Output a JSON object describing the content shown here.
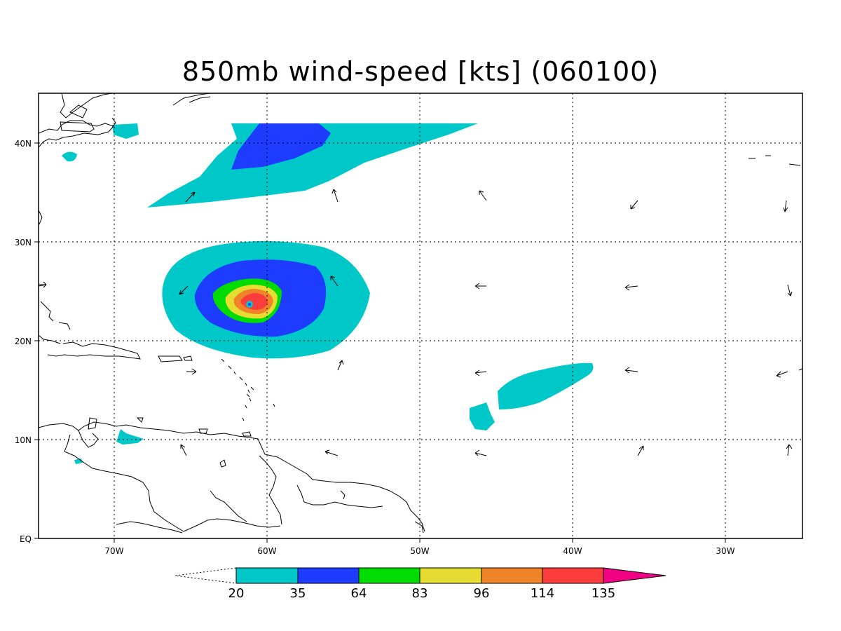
{
  "title": "850mb wind-speed [kts] (060100)",
  "map": {
    "lon_range": [
      -75,
      -25
    ],
    "lat_range": [
      0,
      45
    ],
    "lon_ticks": [
      "70W",
      "60W",
      "50W",
      "40W",
      "30W"
    ],
    "lat_ticks": [
      "EQ",
      "10N",
      "20N",
      "30N",
      "40N"
    ],
    "grid": "dotted"
  },
  "colorbar": {
    "levels": [
      "20",
      "35",
      "64",
      "83",
      "96",
      "114",
      "135"
    ],
    "colors": [
      "#00c8c8",
      "#1e3cff",
      "#00dc00",
      "#e6dc32",
      "#f08228",
      "#fa3c3c",
      "#f00082"
    ],
    "below_min": "none",
    "extend_max": true
  }
}
